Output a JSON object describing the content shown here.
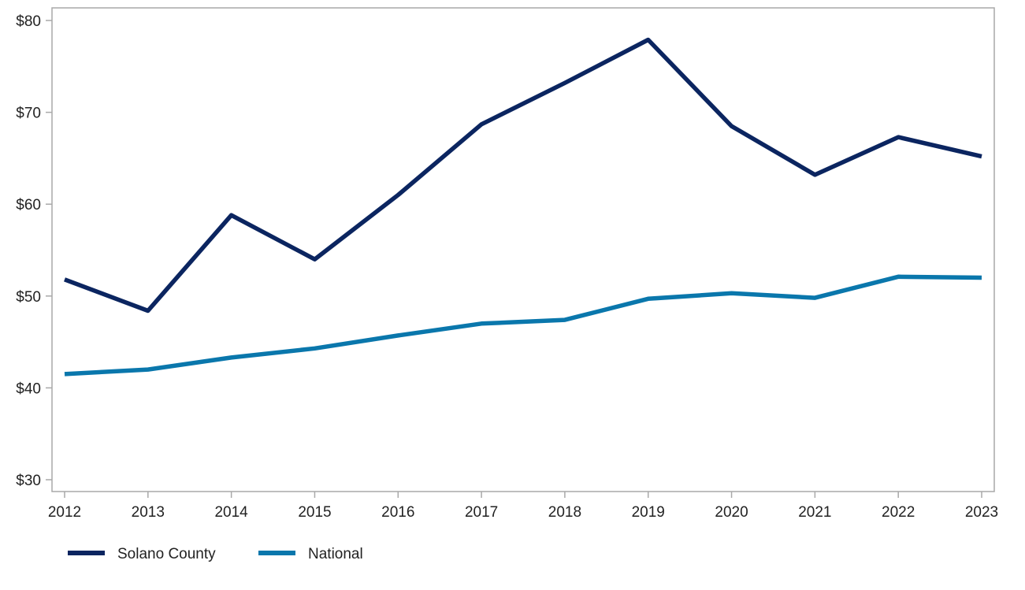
{
  "chart_data": {
    "type": "line",
    "title": "",
    "xlabel": "",
    "ylabel": "",
    "x": [
      "2012",
      "2013",
      "2014",
      "2015",
      "2016",
      "2017",
      "2018",
      "2019",
      "2020",
      "2021",
      "2022",
      "2023"
    ],
    "ylim": [
      30,
      81
    ],
    "yticks": [
      30,
      40,
      50,
      60,
      70,
      80
    ],
    "ytick_labels": [
      "$30",
      "$40",
      "$50",
      "$60",
      "$70",
      "$80"
    ],
    "grid": false,
    "legend_position": "bottom-left",
    "series": [
      {
        "name": "Solano County",
        "color": "#0b2560",
        "values": [
          51.8,
          48.4,
          58.8,
          54.0,
          61.0,
          68.7,
          73.2,
          77.9,
          68.5,
          63.2,
          67.3,
          65.2
        ]
      },
      {
        "name": "National",
        "color": "#0a77ac",
        "values": [
          41.5,
          42.0,
          43.3,
          44.3,
          45.7,
          47.0,
          47.4,
          49.7,
          50.3,
          49.8,
          52.1,
          52.0
        ]
      }
    ]
  }
}
